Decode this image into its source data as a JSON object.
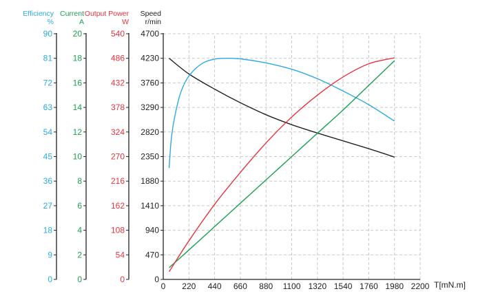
{
  "chart_data": {
    "type": "line",
    "title": "",
    "xlabel": "T[mN.m]",
    "x_ticks": [
      0,
      220,
      440,
      660,
      880,
      1100,
      1320,
      1540,
      1760,
      1980,
      2200
    ],
    "xlim": [
      0,
      2200
    ],
    "grid": true,
    "axes": [
      {
        "id": "efficiency",
        "label": "Efficiency",
        "unit": "%",
        "color": "#29abe2",
        "ticks": [
          0,
          9,
          18,
          27,
          36,
          45,
          54,
          63,
          72,
          81,
          90
        ],
        "range": [
          0,
          90
        ]
      },
      {
        "id": "current",
        "label": "Current",
        "unit": "A",
        "color": "#1aa051",
        "ticks": [
          0,
          2,
          4,
          6,
          8,
          10,
          12,
          14,
          16,
          18,
          20
        ],
        "range": [
          0,
          20
        ]
      },
      {
        "id": "power",
        "label": "Output Power",
        "unit": "W",
        "color": "#e8323c",
        "ticks": [
          0,
          54,
          108,
          162,
          216,
          270,
          324,
          378,
          432,
          486,
          540
        ],
        "range": [
          0,
          540
        ]
      },
      {
        "id": "speed",
        "label": "Speed",
        "unit": "r/min",
        "color": "#222222",
        "ticks": [
          0,
          470,
          940,
          1410,
          1880,
          2350,
          2820,
          3290,
          3760,
          4230,
          4700
        ],
        "range": [
          0,
          4700
        ]
      }
    ],
    "series": [
      {
        "name": "Speed",
        "axis": "speed",
        "color": "#222222",
        "x": [
          50,
          220,
          440,
          660,
          880,
          1100,
          1320,
          1540,
          1760,
          1980
        ],
        "values": [
          4230,
          3930,
          3640,
          3380,
          3150,
          2960,
          2800,
          2650,
          2500,
          2340
        ]
      },
      {
        "name": "Efficiency",
        "axis": "efficiency",
        "color": "#29abe2",
        "x": [
          50,
          70,
          100,
          150,
          220,
          330,
          440,
          550,
          660,
          880,
          1100,
          1320,
          1540,
          1760,
          1980
        ],
        "values": [
          40.8,
          52,
          60,
          68.5,
          74.5,
          79,
          80.7,
          81,
          80.8,
          79.3,
          77,
          73.5,
          69,
          64,
          58
        ]
      },
      {
        "name": "Current",
        "axis": "current",
        "color": "#1aa051",
        "x": [
          50,
          220,
          440,
          660,
          880,
          1100,
          1320,
          1540,
          1760,
          1980
        ],
        "values": [
          0.95,
          2.4,
          4.3,
          6.2,
          8.1,
          10.0,
          11.9,
          13.8,
          15.8,
          17.8
        ]
      },
      {
        "name": "Output Power",
        "axis": "power",
        "color": "#e8323c",
        "x": [
          50,
          220,
          440,
          660,
          880,
          1100,
          1320,
          1540,
          1760,
          1980
        ],
        "values": [
          17,
          85,
          165,
          235,
          300,
          357,
          405,
          445,
          474,
          487
        ]
      }
    ]
  },
  "headers": {
    "efficiency": {
      "title": "Efficiency",
      "unit": "%"
    },
    "current": {
      "title": "Current",
      "unit": "A"
    },
    "power": {
      "title": "Output Power",
      "unit": "W"
    },
    "speed": {
      "title": "Speed",
      "unit": "r/min"
    }
  }
}
